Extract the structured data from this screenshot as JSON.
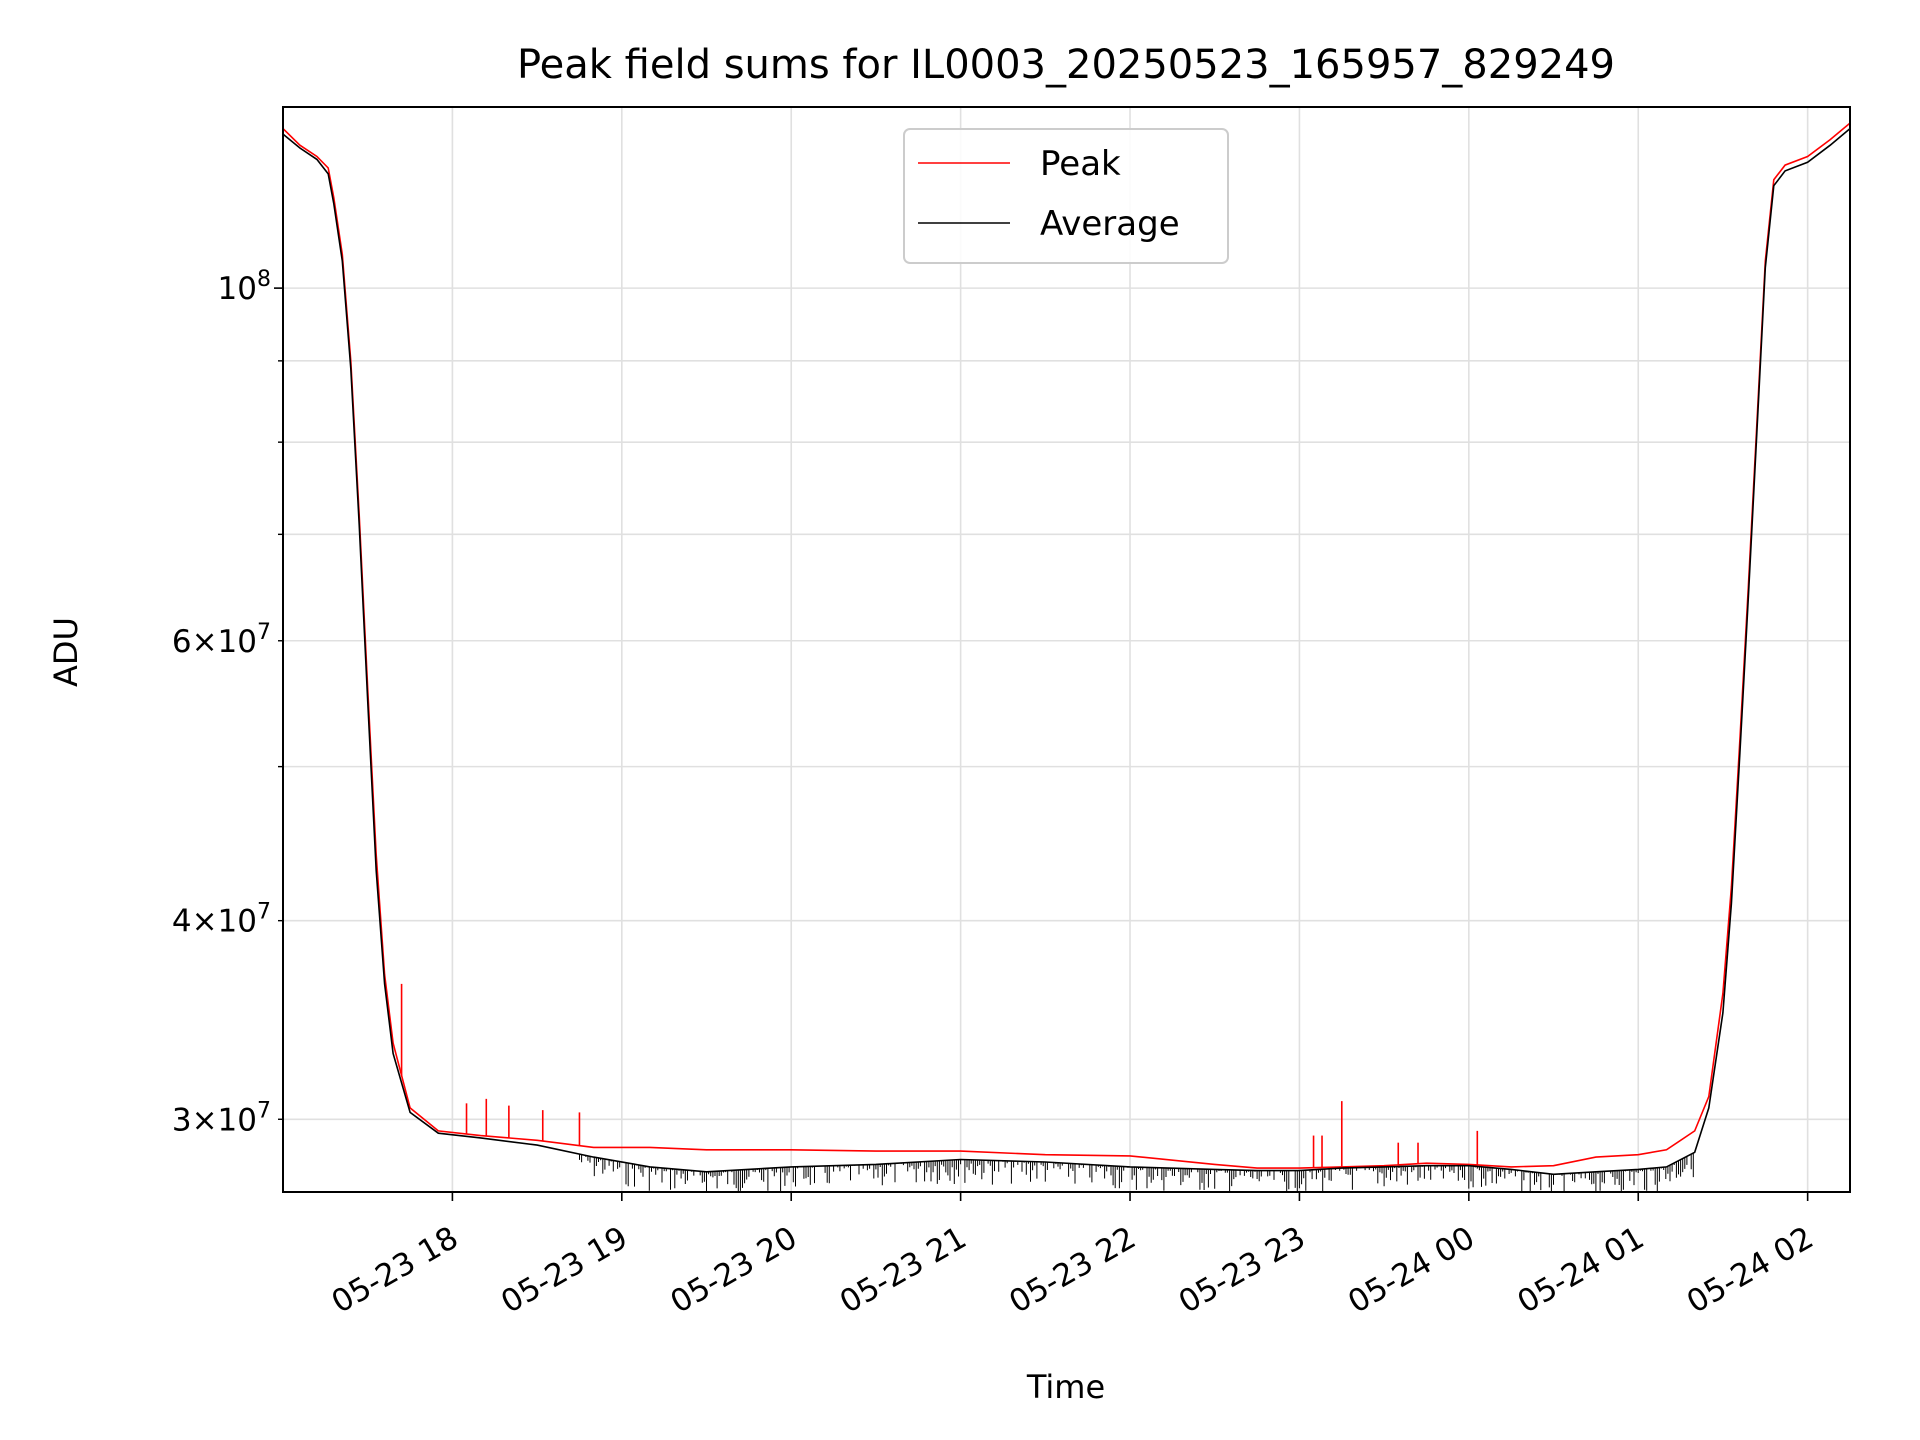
{
  "chart_data": {
    "type": "line",
    "title": "Peak field sums for IL0003_20250523_165957_829249",
    "xlabel": "Time",
    "ylabel": "ADU",
    "x_scale": "time",
    "y_scale": "log",
    "xlim": [
      "2025-05-23 17:00",
      "2025-05-24 02:15"
    ],
    "ylim": [
      27000000,
      130000000
    ],
    "x_ticks": [
      {
        "t": "2025-05-23 18:00",
        "label": "05-23 18"
      },
      {
        "t": "2025-05-23 19:00",
        "label": "05-23 19"
      },
      {
        "t": "2025-05-23 20:00",
        "label": "05-23 20"
      },
      {
        "t": "2025-05-23 21:00",
        "label": "05-23 21"
      },
      {
        "t": "2025-05-23 22:00",
        "label": "05-23 22"
      },
      {
        "t": "2025-05-23 23:00",
        "label": "05-23 23"
      },
      {
        "t": "2025-05-24 00:00",
        "label": "05-24 00"
      },
      {
        "t": "2025-05-24 01:00",
        "label": "05-24 01"
      },
      {
        "t": "2025-05-24 02:00",
        "label": "05-24 02"
      }
    ],
    "y_ticks_major": [
      {
        "v": 100000000,
        "base": "10",
        "exp": "8"
      }
    ],
    "y_ticks_minor_labeled": [
      {
        "v": 30000000,
        "coef": "3",
        "base": "10",
        "exp": "7"
      },
      {
        "v": 40000000,
        "coef": "4",
        "base": "10",
        "exp": "7"
      },
      {
        "v": 60000000,
        "coef": "6",
        "base": "10",
        "exp": "7"
      }
    ],
    "y_ticks_minor_unlabeled": [
      50000000,
      70000000,
      80000000,
      90000000
    ],
    "grid": true,
    "legend_position": "top-center",
    "series": [
      {
        "name": "Peak",
        "color": "#ff0000",
        "points": [
          [
            "2025-05-23 17:00",
            126000000
          ],
          [
            "2025-05-23 17:06",
            123000000
          ],
          [
            "2025-05-23 17:12",
            121000000
          ],
          [
            "2025-05-23 17:16",
            119000000
          ],
          [
            "2025-05-23 17:18",
            114000000
          ],
          [
            "2025-05-23 17:21",
            105000000
          ],
          [
            "2025-05-23 17:24",
            90000000
          ],
          [
            "2025-05-23 17:27",
            72000000
          ],
          [
            "2025-05-23 17:30",
            56000000
          ],
          [
            "2025-05-23 17:33",
            44000000
          ],
          [
            "2025-05-23 17:36",
            37000000
          ],
          [
            "2025-05-23 17:39",
            33500000
          ],
          [
            "2025-05-23 17:45",
            30500000
          ],
          [
            "2025-05-23 17:55",
            29500000
          ],
          [
            "2025-05-23 18:10",
            29300000
          ],
          [
            "2025-05-23 18:30",
            29100000
          ],
          [
            "2025-05-23 18:50",
            28800000
          ],
          [
            "2025-05-23 19:10",
            28800000
          ],
          [
            "2025-05-23 19:30",
            28700000
          ],
          [
            "2025-05-23 20:00",
            28700000
          ],
          [
            "2025-05-23 20:30",
            28650000
          ],
          [
            "2025-05-23 21:00",
            28650000
          ],
          [
            "2025-05-23 21:30",
            28500000
          ],
          [
            "2025-05-23 22:00",
            28450000
          ],
          [
            "2025-05-23 22:30",
            28100000
          ],
          [
            "2025-05-23 22:45",
            27950000
          ],
          [
            "2025-05-23 23:00",
            27950000
          ],
          [
            "2025-05-23 23:15",
            28000000
          ],
          [
            "2025-05-23 23:30",
            28050000
          ],
          [
            "2025-05-23 23:45",
            28150000
          ],
          [
            "2025-05-24 00:00",
            28100000
          ],
          [
            "2025-05-24 00:15",
            28000000
          ],
          [
            "2025-05-24 00:30",
            28050000
          ],
          [
            "2025-05-24 00:45",
            28400000
          ],
          [
            "2025-05-24 01:00",
            28500000
          ],
          [
            "2025-05-24 01:10",
            28700000
          ],
          [
            "2025-05-24 01:20",
            29500000
          ],
          [
            "2025-05-24 01:25",
            31000000
          ],
          [
            "2025-05-24 01:30",
            36000000
          ],
          [
            "2025-05-24 01:33",
            42000000
          ],
          [
            "2025-05-24 01:36",
            52000000
          ],
          [
            "2025-05-24 01:39",
            65000000
          ],
          [
            "2025-05-24 01:42",
            82000000
          ],
          [
            "2025-05-24 01:45",
            104000000
          ],
          [
            "2025-05-24 01:48",
            117000000
          ],
          [
            "2025-05-24 01:52",
            119500000
          ],
          [
            "2025-05-24 02:00",
            121000000
          ],
          [
            "2025-05-24 02:08",
            124000000
          ],
          [
            "2025-05-24 02:15",
            127000000
          ]
        ],
        "spikes": [
          [
            "2025-05-23 17:42",
            36500000
          ],
          [
            "2025-05-23 18:05",
            30700000
          ],
          [
            "2025-05-23 18:12",
            30900000
          ],
          [
            "2025-05-23 18:20",
            30600000
          ],
          [
            "2025-05-23 18:32",
            30400000
          ],
          [
            "2025-05-23 18:45",
            30300000
          ],
          [
            "2025-05-23 23:05",
            29300000
          ],
          [
            "2025-05-23 23:08",
            29300000
          ],
          [
            "2025-05-23 23:15",
            30800000
          ],
          [
            "2025-05-23 23:35",
            29000000
          ],
          [
            "2025-05-23 23:42",
            29000000
          ],
          [
            "2025-05-24 00:03",
            29500000
          ]
        ]
      },
      {
        "name": "Average",
        "color": "#000000",
        "points": [
          [
            "2025-05-23 17:00",
            125000000
          ],
          [
            "2025-05-23 17:06",
            122500000
          ],
          [
            "2025-05-23 17:12",
            120500000
          ],
          [
            "2025-05-23 17:16",
            118000000
          ],
          [
            "2025-05-23 17:18",
            113000000
          ],
          [
            "2025-05-23 17:21",
            104000000
          ],
          [
            "2025-05-23 17:24",
            89000000
          ],
          [
            "2025-05-23 17:27",
            71000000
          ],
          [
            "2025-05-23 17:30",
            55000000
          ],
          [
            "2025-05-23 17:33",
            43000000
          ],
          [
            "2025-05-23 17:36",
            36500000
          ],
          [
            "2025-05-23 17:39",
            33000000
          ],
          [
            "2025-05-23 17:45",
            30300000
          ],
          [
            "2025-05-23 17:55",
            29400000
          ],
          [
            "2025-05-23 18:10",
            29200000
          ],
          [
            "2025-05-23 18:30",
            28900000
          ],
          [
            "2025-05-23 18:50",
            28400000
          ],
          [
            "2025-05-23 19:10",
            28000000
          ],
          [
            "2025-05-23 19:30",
            27800000
          ],
          [
            "2025-05-23 20:00",
            28000000
          ],
          [
            "2025-05-23 20:30",
            28100000
          ],
          [
            "2025-05-23 21:00",
            28300000
          ],
          [
            "2025-05-23 21:30",
            28200000
          ],
          [
            "2025-05-23 22:00",
            28000000
          ],
          [
            "2025-05-23 22:30",
            27900000
          ],
          [
            "2025-05-23 22:45",
            27850000
          ],
          [
            "2025-05-23 23:00",
            27850000
          ],
          [
            "2025-05-23 23:15",
            27950000
          ],
          [
            "2025-05-23 23:30",
            28000000
          ],
          [
            "2025-05-23 23:45",
            28050000
          ],
          [
            "2025-05-24 00:00",
            28050000
          ],
          [
            "2025-05-24 00:15",
            27900000
          ],
          [
            "2025-05-24 00:30",
            27700000
          ],
          [
            "2025-05-24 00:45",
            27800000
          ],
          [
            "2025-05-24 01:00",
            27900000
          ],
          [
            "2025-05-24 01:10",
            28000000
          ],
          [
            "2025-05-24 01:20",
            28600000
          ],
          [
            "2025-05-24 01:25",
            30500000
          ],
          [
            "2025-05-24 01:30",
            35000000
          ],
          [
            "2025-05-24 01:33",
            41000000
          ],
          [
            "2025-05-24 01:36",
            51000000
          ],
          [
            "2025-05-24 01:39",
            64000000
          ],
          [
            "2025-05-24 01:42",
            81000000
          ],
          [
            "2025-05-24 01:45",
            103000000
          ],
          [
            "2025-05-24 01:48",
            116000000
          ],
          [
            "2025-05-24 01:52",
            118500000
          ],
          [
            "2025-05-24 02:00",
            120000000
          ],
          [
            "2025-05-24 02:08",
            123000000
          ],
          [
            "2025-05-24 02:15",
            126000000
          ]
        ],
        "noise_band": {
          "from": "2025-05-23 18:45",
          "to": "2025-05-24 01:20",
          "min": 27000000
        }
      }
    ]
  }
}
